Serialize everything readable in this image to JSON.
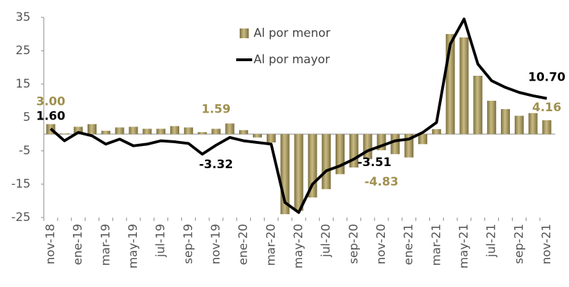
{
  "chart_data": {
    "type": "bar-line",
    "categories": [
      "nov-18",
      null,
      "ene-19",
      null,
      "mar-19",
      null,
      "may-19",
      null,
      "jul-19",
      null,
      "sep-19",
      null,
      "nov-19",
      null,
      "ene-20",
      null,
      "mar-20",
      null,
      "may-20",
      null,
      "jul-20",
      null,
      "sep-20",
      null,
      "nov-20",
      null,
      "ene-21",
      null,
      "mar-21",
      null,
      "may-21",
      null,
      "jul-21",
      null,
      "sep-21",
      null,
      "nov-21"
    ],
    "series": [
      {
        "name": "Al por menor",
        "type": "bar",
        "color": "#a3955a",
        "values": [
          3.0,
          0.2,
          2.2,
          3.0,
          1.0,
          2.0,
          2.2,
          1.6,
          1.6,
          2.4,
          2.0,
          0.6,
          1.59,
          3.2,
          1.2,
          -1.0,
          -2.5,
          -24.0,
          -23.0,
          -19.0,
          -16.5,
          -12.0,
          -10.0,
          -7.5,
          -4.83,
          -6.0,
          -7.0,
          -3.0,
          1.5,
          30.0,
          29.0,
          17.5,
          10.0,
          7.5,
          5.5,
          6.3,
          4.16
        ],
        "value_labels": [
          "3.00",
          null,
          null,
          null,
          null,
          null,
          null,
          null,
          null,
          null,
          null,
          null,
          "1.59",
          null,
          null,
          null,
          null,
          null,
          null,
          null,
          null,
          null,
          null,
          null,
          "-4.83",
          null,
          null,
          null,
          null,
          null,
          null,
          null,
          null,
          null,
          null,
          null,
          "4.16"
        ]
      },
      {
        "name": "Al por mayor",
        "type": "line",
        "color": "#000000",
        "values": [
          1.6,
          -2.0,
          0.5,
          -0.5,
          -3.0,
          -1.5,
          -3.5,
          -3.0,
          -2.0,
          -2.3,
          -2.8,
          -6.0,
          -3.32,
          -1.0,
          -2.0,
          -2.5,
          -3.0,
          -20.5,
          -23.5,
          -15.0,
          -11.0,
          -9.5,
          -7.5,
          -5.0,
          -3.51,
          -2.0,
          -1.5,
          0.5,
          3.5,
          27.0,
          34.5,
          21.0,
          16.0,
          14.0,
          12.5,
          11.5,
          10.7
        ],
        "value_labels": [
          "1.60",
          null,
          null,
          null,
          null,
          null,
          null,
          null,
          null,
          null,
          null,
          null,
          "-3.32",
          null,
          null,
          null,
          null,
          null,
          null,
          null,
          null,
          null,
          null,
          null,
          "-3.51",
          null,
          null,
          null,
          null,
          null,
          null,
          null,
          null,
          null,
          null,
          null,
          "10.70"
        ]
      }
    ],
    "ylim": [
      -25,
      35
    ],
    "yticks": [
      -25,
      -15,
      -5,
      5,
      15,
      25,
      35
    ],
    "legend": "top-center",
    "grid": false
  }
}
